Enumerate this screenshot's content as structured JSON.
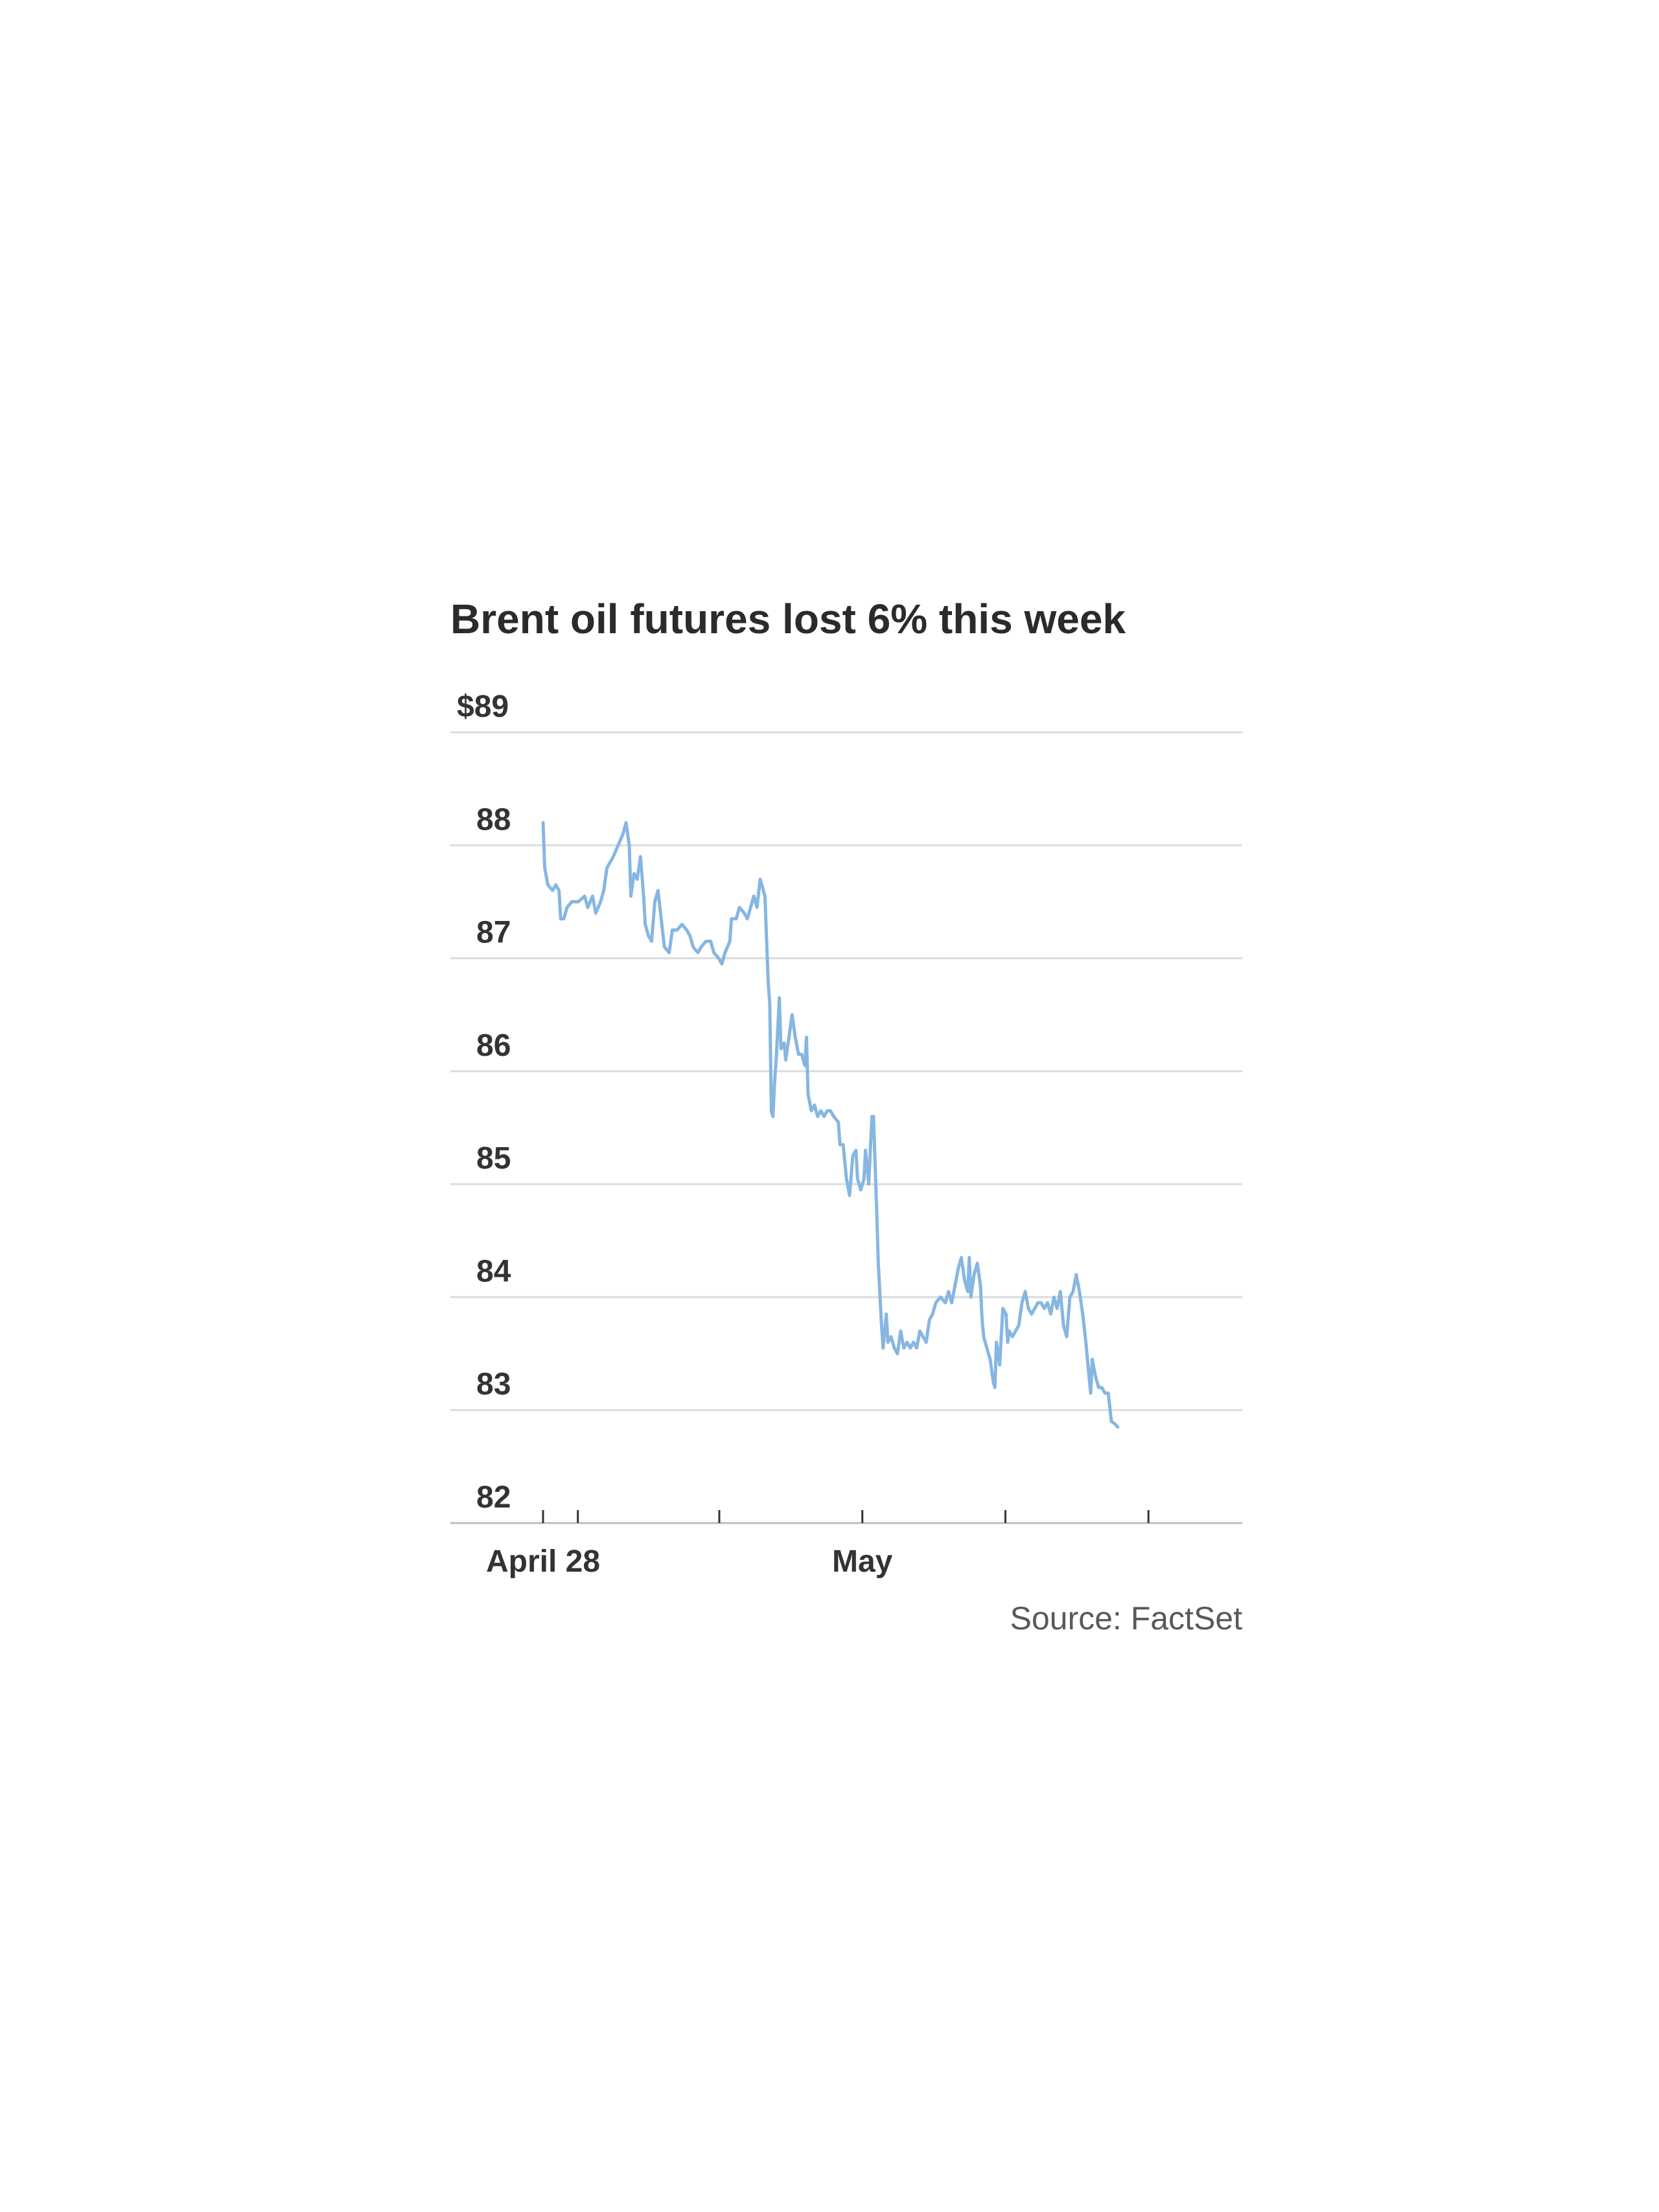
{
  "title": "Brent oil futures lost 6% this week",
  "source": "Source: FactSet",
  "colors": {
    "line": "#86b6e2",
    "grid": "#dcdcdc",
    "axis": "#bdbdbd",
    "text": "#333333"
  },
  "chart_data": {
    "type": "line",
    "title": "Brent oil futures lost 6% this week",
    "ylim": [
      82,
      89
    ],
    "y_ticks": [
      89,
      88,
      87,
      86,
      85,
      84,
      83,
      82
    ],
    "y_tick_labels": [
      "$89",
      "88",
      "87",
      "86",
      "85",
      "84",
      "83",
      "82"
    ],
    "x_tick_labels": [
      {
        "label": "April 28",
        "x": 0
      },
      {
        "label": "May",
        "x": 100
      }
    ],
    "x_minor_ticks": [
      0,
      10.9,
      55.2,
      100,
      144.8,
      189.6
    ],
    "xlim": [
      0,
      220
    ],
    "grid": true,
    "series": [
      {
        "values": [
          [
            0,
            88.2
          ],
          [
            0.5,
            87.8
          ],
          [
            1.5,
            87.65
          ],
          [
            3,
            87.6
          ],
          [
            4,
            87.65
          ],
          [
            5,
            87.6
          ],
          [
            5.5,
            87.35
          ],
          [
            6.5,
            87.35
          ],
          [
            7.5,
            87.45
          ],
          [
            9,
            87.5
          ],
          [
            11,
            87.5
          ],
          [
            13,
            87.55
          ],
          [
            14,
            87.45
          ],
          [
            15.5,
            87.55
          ],
          [
            16.5,
            87.4
          ],
          [
            18,
            87.5
          ],
          [
            19,
            87.6
          ],
          [
            20,
            87.8
          ],
          [
            22,
            87.9
          ],
          [
            23.5,
            88.0
          ],
          [
            25,
            88.1
          ],
          [
            26,
            88.2
          ],
          [
            27,
            88.0
          ],
          [
            27.5,
            87.55
          ],
          [
            28.5,
            87.75
          ],
          [
            29.5,
            87.7
          ],
          [
            30.5,
            87.9
          ],
          [
            31.5,
            87.55
          ],
          [
            32,
            87.3
          ],
          [
            33,
            87.2
          ],
          [
            34,
            87.15
          ],
          [
            35,
            87.5
          ],
          [
            36,
            87.6
          ],
          [
            37,
            87.35
          ],
          [
            38,
            87.1
          ],
          [
            39.5,
            87.05
          ],
          [
            40.5,
            87.25
          ],
          [
            42,
            87.25
          ],
          [
            43.5,
            87.3
          ],
          [
            45,
            87.25
          ],
          [
            46,
            87.2
          ],
          [
            47,
            87.1
          ],
          [
            48.5,
            87.05
          ],
          [
            49.5,
            87.1
          ],
          [
            51,
            87.15
          ],
          [
            52.5,
            87.15
          ],
          [
            53.5,
            87.05
          ],
          [
            55,
            87.0
          ],
          [
            56,
            86.95
          ],
          [
            57,
            87.05
          ],
          [
            58.5,
            87.15
          ],
          [
            59,
            87.35
          ],
          [
            60.5,
            87.35
          ],
          [
            61.5,
            87.45
          ],
          [
            63,
            87.4
          ],
          [
            64,
            87.35
          ],
          [
            65,
            87.45
          ],
          [
            66,
            87.55
          ],
          [
            67,
            87.45
          ],
          [
            68,
            87.7
          ],
          [
            69.5,
            87.55
          ],
          [
            70.5,
            86.8
          ],
          [
            71,
            86.6
          ],
          [
            71.5,
            85.65
          ],
          [
            72,
            85.6
          ],
          [
            72.5,
            85.9
          ],
          [
            73,
            86.1
          ],
          [
            74,
            86.65
          ],
          [
            74.5,
            86.2
          ],
          [
            75.5,
            86.25
          ],
          [
            76,
            86.1
          ],
          [
            77,
            86.3
          ],
          [
            78,
            86.5
          ],
          [
            79,
            86.3
          ],
          [
            80,
            86.15
          ],
          [
            81,
            86.15
          ],
          [
            82,
            86.05
          ],
          [
            82.5,
            86.3
          ],
          [
            83,
            85.8
          ],
          [
            84,
            85.65
          ],
          [
            85,
            85.7
          ],
          [
            86,
            85.6
          ],
          [
            87,
            85.65
          ],
          [
            88,
            85.6
          ],
          [
            89,
            85.65
          ],
          [
            90,
            85.65
          ],
          [
            91,
            85.6
          ],
          [
            92.5,
            85.55
          ],
          [
            93,
            85.35
          ],
          [
            94,
            85.35
          ],
          [
            95,
            85.05
          ],
          [
            96,
            84.9
          ],
          [
            97,
            85.25
          ],
          [
            98,
            85.3
          ],
          [
            98.5,
            85.05
          ],
          [
            99.5,
            84.95
          ],
          [
            100.5,
            85.05
          ],
          [
            101,
            85.3
          ],
          [
            102,
            85.0
          ],
          [
            103,
            85.6
          ],
          [
            103.5,
            85.6
          ],
          [
            104.5,
            84.75
          ],
          [
            105,
            84.3
          ],
          [
            106,
            83.75
          ],
          [
            106.5,
            83.55
          ],
          [
            107.5,
            83.85
          ],
          [
            108,
            83.6
          ],
          [
            109,
            83.65
          ],
          [
            110,
            83.55
          ],
          [
            111,
            83.5
          ],
          [
            112,
            83.7
          ],
          [
            113,
            83.55
          ],
          [
            114,
            83.6
          ],
          [
            115,
            83.55
          ],
          [
            116,
            83.6
          ],
          [
            117,
            83.55
          ],
          [
            118,
            83.7
          ],
          [
            119,
            83.65
          ],
          [
            120,
            83.6
          ],
          [
            121,
            83.8
          ],
          [
            122,
            83.85
          ],
          [
            123,
            83.95
          ],
          [
            124.5,
            84.0
          ],
          [
            126,
            83.95
          ],
          [
            127,
            84.05
          ],
          [
            128,
            83.95
          ],
          [
            129,
            84.1
          ],
          [
            130,
            84.25
          ],
          [
            131,
            84.35
          ],
          [
            132,
            84.15
          ],
          [
            133,
            84.05
          ],
          [
            133.5,
            84.35
          ],
          [
            134,
            84.0
          ],
          [
            135,
            84.2
          ],
          [
            136,
            84.3
          ],
          [
            137,
            84.1
          ],
          [
            137.5,
            83.8
          ],
          [
            138,
            83.65
          ],
          [
            139,
            83.55
          ],
          [
            140,
            83.45
          ],
          [
            141,
            83.25
          ],
          [
            141.5,
            83.2
          ],
          [
            142,
            83.6
          ],
          [
            143,
            83.4
          ],
          [
            144,
            83.9
          ],
          [
            145,
            83.85
          ],
          [
            145.5,
            83.6
          ],
          [
            146,
            83.7
          ],
          [
            147,
            83.65
          ],
          [
            148,
            83.7
          ],
          [
            149,
            83.75
          ],
          [
            150,
            83.95
          ],
          [
            151,
            84.05
          ],
          [
            152,
            83.9
          ],
          [
            153,
            83.85
          ],
          [
            154,
            83.9
          ],
          [
            155,
            83.95
          ],
          [
            156,
            83.95
          ],
          [
            157,
            83.9
          ],
          [
            158,
            83.95
          ],
          [
            159,
            83.85
          ],
          [
            160,
            84.0
          ],
          [
            161,
            83.9
          ],
          [
            162,
            84.05
          ],
          [
            163,
            83.75
          ],
          [
            164,
            83.65
          ],
          [
            165,
            84.0
          ],
          [
            166,
            84.05
          ],
          [
            167,
            84.2
          ],
          [
            168,
            84.05
          ],
          [
            169,
            83.85
          ],
          [
            170,
            83.6
          ],
          [
            171,
            83.3
          ],
          [
            171.5,
            83.15
          ],
          [
            172,
            83.45
          ],
          [
            173,
            83.3
          ],
          [
            174,
            83.2
          ],
          [
            175,
            83.2
          ],
          [
            176,
            83.15
          ],
          [
            177,
            83.15
          ],
          [
            178,
            82.9
          ],
          [
            179,
            82.88
          ],
          [
            180,
            82.85
          ]
        ]
      }
    ]
  }
}
